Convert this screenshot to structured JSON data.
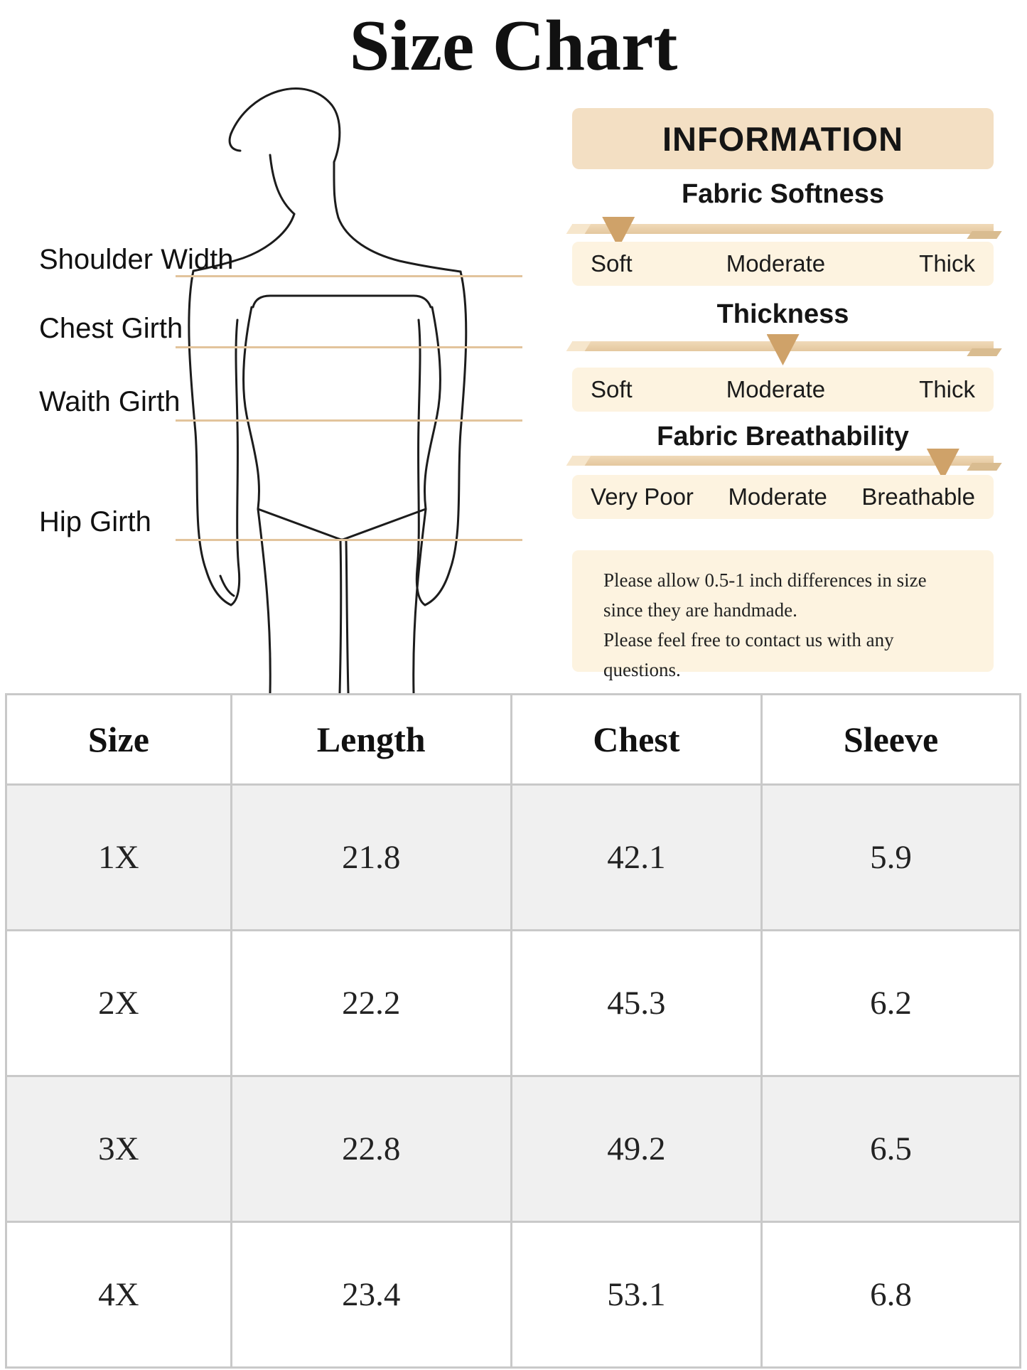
{
  "title": "Size Chart",
  "diagram": {
    "labels": [
      {
        "text": "Shoulder Width"
      },
      {
        "text": "Chest Girth"
      },
      {
        "text": "Waith Girth"
      },
      {
        "text": "Hip Girth"
      }
    ]
  },
  "info_panel": {
    "header": "INFORMATION",
    "sections": [
      {
        "title": "Fabric Softness",
        "labels": [
          "Soft",
          "Moderate",
          "Thick"
        ],
        "marker_pct": 11
      },
      {
        "title": "Thickness",
        "labels": [
          "Soft",
          "Moderate",
          "Thick"
        ],
        "marker_pct": 50
      },
      {
        "title": "Fabric Breathability",
        "labels": [
          "Very Poor",
          "Moderate",
          "Breathable"
        ],
        "marker_pct": 88
      }
    ],
    "note_lines": [
      "Please allow 0.5-1 inch differences in size",
      "since they are handmade.",
      "Please feel free to contact us with any questions."
    ]
  },
  "size_table": {
    "headers": [
      "Size",
      "Length",
      "Chest",
      "Sleeve"
    ],
    "rows": [
      [
        "1X",
        "21.8",
        "42.1",
        "5.9"
      ],
      [
        "2X",
        "22.2",
        "45.3",
        "6.2"
      ],
      [
        "3X",
        "22.8",
        "49.2",
        "6.5"
      ],
      [
        "4X",
        "23.4",
        "53.1",
        "6.8"
      ]
    ]
  },
  "colors": {
    "panel_tan": "#f3dfc3",
    "box_cream": "#fdf3e0",
    "slider_bar": "#e9cfa9",
    "marker_triangle": "#cfa269",
    "measure_line": "#e2c49c",
    "table_alt_row": "#f0f0f0",
    "table_border": "#c9c9c9",
    "text": "#1b1b1b"
  }
}
